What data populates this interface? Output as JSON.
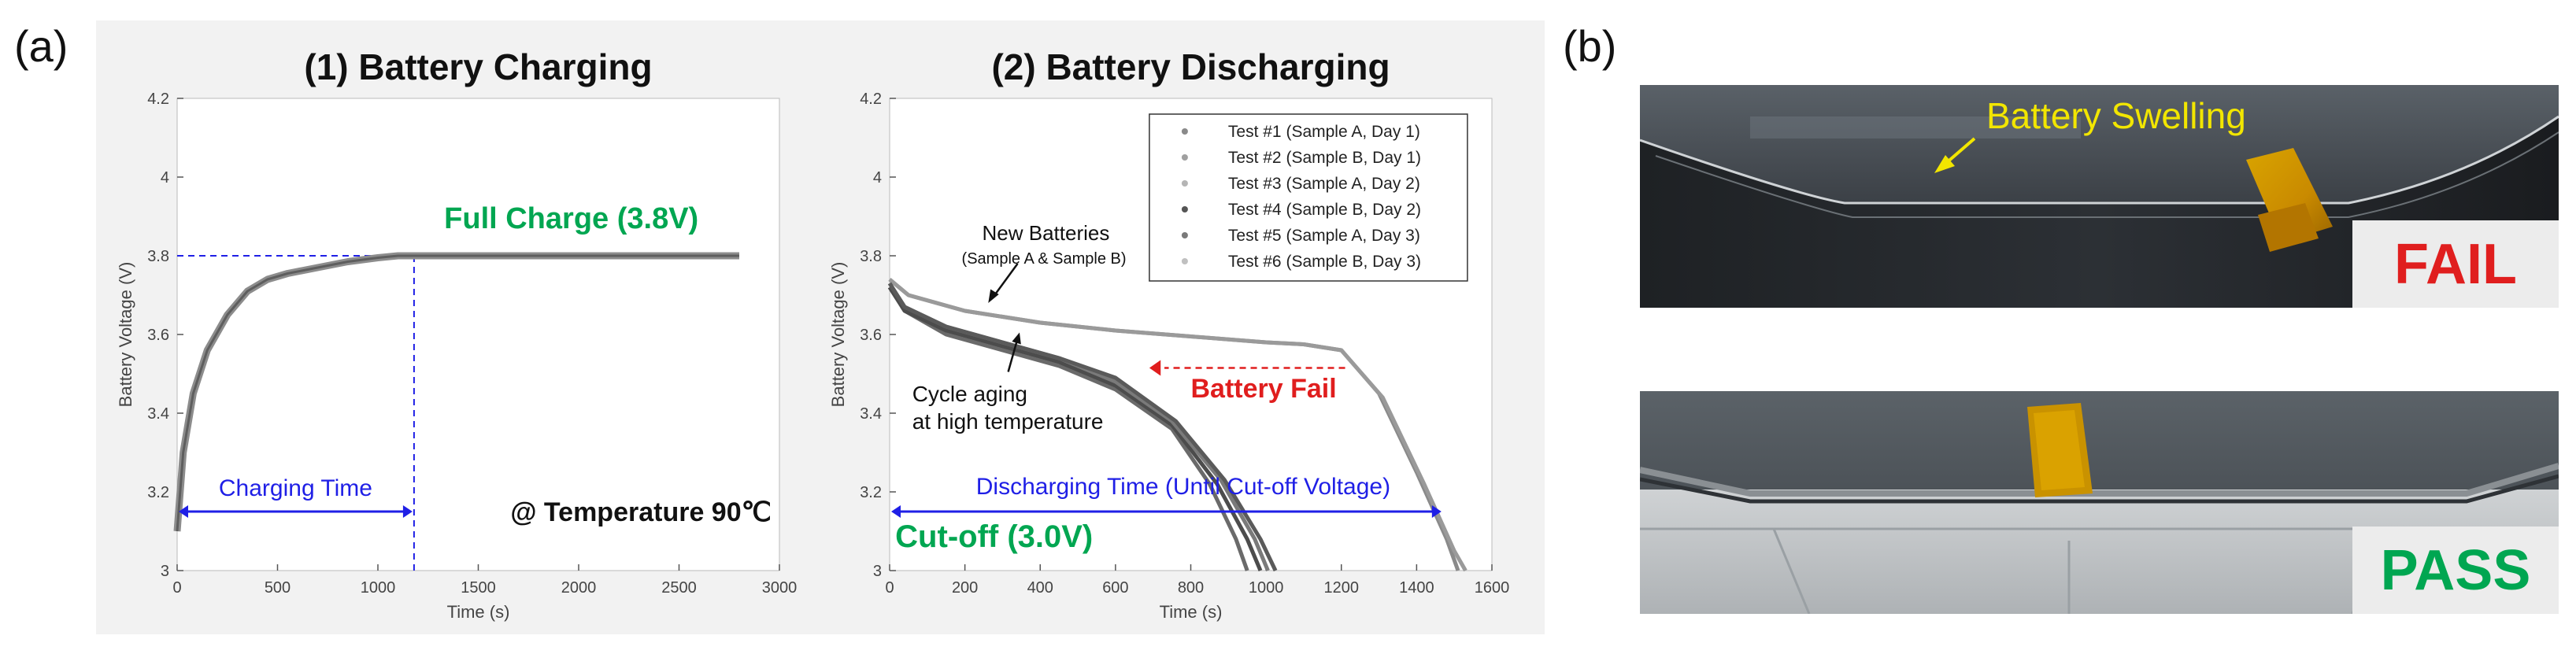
{
  "panel_a_label": "(a)",
  "panel_b_label": "(b)",
  "colors": {
    "axis": "#555555",
    "curve": "#6d6d6d",
    "blue": "#1f1fe6",
    "green": "#00a651",
    "red": "#e01e1e",
    "yellow": "#f2e600"
  },
  "chart_data": [
    {
      "type": "line",
      "title": "(1) Battery Charging",
      "xlabel": "Time (s)",
      "ylabel": "Battery Voltage (V)",
      "xlim": [
        0,
        3000
      ],
      "ylim": [
        3.0,
        4.2
      ],
      "xticks": [
        0,
        500,
        1000,
        1500,
        2000,
        2500,
        3000
      ],
      "yticks": [
        3,
        3.2,
        3.4,
        3.6,
        3.8,
        4,
        4.2
      ],
      "series": [
        {
          "name": "charging curve",
          "x": [
            0,
            30,
            80,
            150,
            250,
            350,
            450,
            550,
            700,
            850,
            1000,
            1100,
            1200,
            1500,
            2000,
            2500,
            2800
          ],
          "y": [
            3.1,
            3.3,
            3.45,
            3.56,
            3.65,
            3.71,
            3.74,
            3.755,
            3.77,
            3.785,
            3.795,
            3.8,
            3.8,
            3.8,
            3.8,
            3.8,
            3.8
          ]
        }
      ],
      "annotations": {
        "full_charge": "Full Charge (3.8V)",
        "full_charge_voltage": 3.8,
        "charging_time_label": "Charging Time",
        "charging_time_end": 1180,
        "temperature": "@ Temperature 90℃"
      }
    },
    {
      "type": "line",
      "title": "(2) Battery Discharging",
      "xlabel": "Time (s)",
      "ylabel": "Battery Voltage (V)",
      "xlim": [
        0,
        1600
      ],
      "ylim": [
        3.0,
        4.2
      ],
      "xticks": [
        0,
        200,
        400,
        600,
        800,
        1000,
        1200,
        1400,
        1600
      ],
      "yticks": [
        3,
        3.2,
        3.4,
        3.6,
        3.8,
        4,
        4.2
      ],
      "legend": [
        "Test #1 (Sample A, Day 1)",
        "Test #2 (Sample B, Day 1)",
        "Test #3 (Sample A, Day 2)",
        "Test #4 (Sample B, Day 2)",
        "Test #5 (Sample A, Day 3)",
        "Test #6 (Sample B, Day 3)"
      ],
      "legend_colors": [
        "#8a8a8a",
        "#a0a0a0",
        "#b5b5b5",
        "#555555",
        "#7a7a7a",
        "#c0c0c0"
      ],
      "legend_position": "top-right",
      "series": [
        {
          "name": "Test #1 (Sample A, Day 1)",
          "x": [
            0,
            50,
            200,
            400,
            600,
            800,
            1000,
            1100,
            1200,
            1300,
            1400,
            1480,
            1510
          ],
          "y": [
            3.74,
            3.7,
            3.66,
            3.63,
            3.61,
            3.595,
            3.58,
            3.575,
            3.56,
            3.45,
            3.25,
            3.08,
            3.0
          ]
        },
        {
          "name": "Test #2 (Sample B, Day 1)",
          "x": [
            0,
            50,
            200,
            400,
            600,
            800,
            1000,
            1100,
            1200,
            1310,
            1420,
            1500,
            1530
          ],
          "y": [
            3.74,
            3.7,
            3.66,
            3.63,
            3.61,
            3.595,
            3.58,
            3.575,
            3.56,
            3.44,
            3.22,
            3.05,
            3.0
          ]
        },
        {
          "name": "Test #3 (Sample A, Day 2)",
          "x": [
            0,
            40,
            150,
            300,
            450,
            600,
            750,
            850,
            920,
            950
          ],
          "y": [
            3.72,
            3.66,
            3.6,
            3.56,
            3.52,
            3.46,
            3.36,
            3.22,
            3.08,
            3.0
          ]
        },
        {
          "name": "Test #4 (Sample B, Day 2)",
          "x": [
            0,
            40,
            150,
            300,
            450,
            600,
            750,
            870,
            950,
            985
          ],
          "y": [
            3.72,
            3.66,
            3.61,
            3.57,
            3.53,
            3.47,
            3.37,
            3.22,
            3.08,
            3.0
          ]
        },
        {
          "name": "Test #5 (Sample A, Day 3)",
          "x": [
            0,
            40,
            150,
            300,
            450,
            600,
            750,
            880,
            970,
            1005
          ],
          "y": [
            3.73,
            3.67,
            3.62,
            3.58,
            3.54,
            3.48,
            3.38,
            3.23,
            3.08,
            3.0
          ]
        },
        {
          "name": "Test #6 (Sample B, Day 3)",
          "x": [
            0,
            40,
            150,
            300,
            450,
            600,
            760,
            890,
            985,
            1025
          ],
          "y": [
            3.73,
            3.67,
            3.62,
            3.58,
            3.54,
            3.49,
            3.38,
            3.23,
            3.08,
            3.0
          ]
        }
      ],
      "annotations": {
        "new_batteries": "New Batteries",
        "new_batteries_sub": "(Sample A & Sample B)",
        "cycle_aging_1": "Cycle aging",
        "cycle_aging_2": "at high temperature",
        "battery_fail": "Battery Fail",
        "discharging_time": "Discharging Time (Until Cut-off Voltage)",
        "cutoff": "Cut-off (3.0V)",
        "cutoff_voltage": 3.0,
        "discharge_arrow_end": 1470
      }
    }
  ],
  "photos": {
    "fail": {
      "callout": "Battery Swelling",
      "verdict": "FAIL"
    },
    "pass": {
      "verdict": "PASS"
    }
  }
}
